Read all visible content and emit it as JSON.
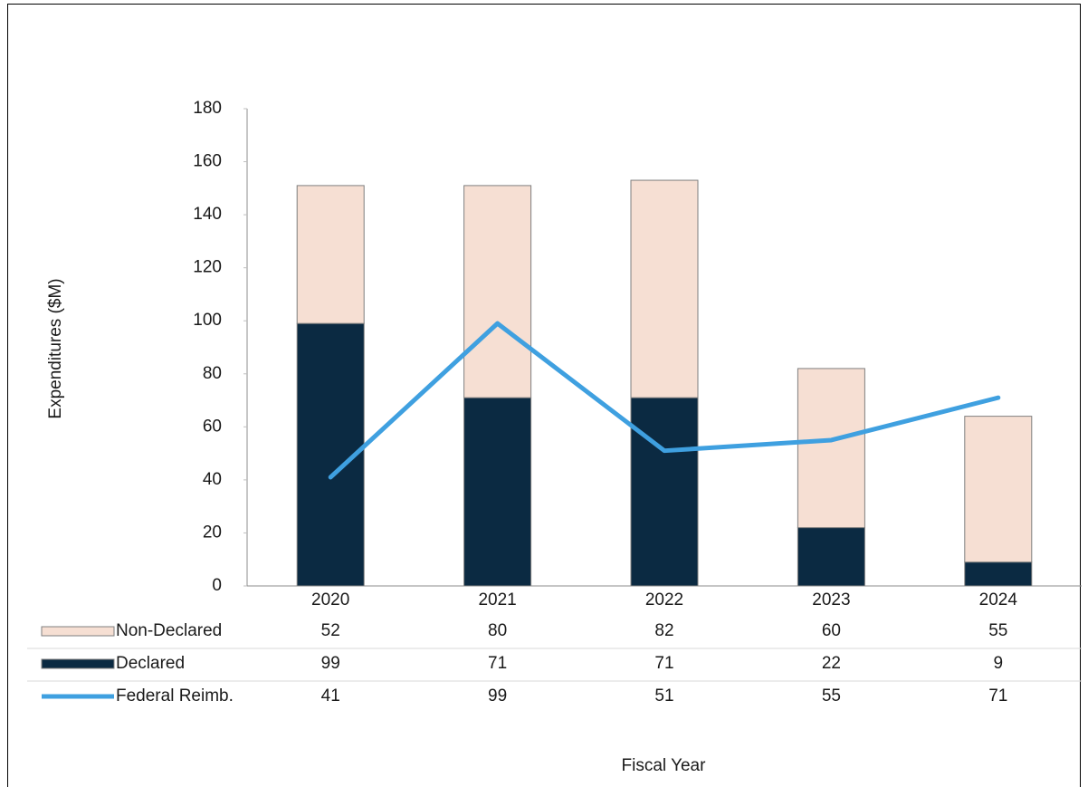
{
  "chart_data": {
    "type": "bar",
    "categories": [
      "2020",
      "2021",
      "2022",
      "2023",
      "2024"
    ],
    "series": [
      {
        "name": "Non-Declared",
        "kind": "bar",
        "color": "#f6dfd3",
        "values": [
          52,
          80,
          82,
          60,
          55
        ]
      },
      {
        "name": "Declared",
        "kind": "bar",
        "color": "#0b2a42",
        "values": [
          99,
          71,
          71,
          22,
          9
        ]
      },
      {
        "name": "Federal Reimb.",
        "kind": "line",
        "color": "#3fa0e0",
        "values": [
          41,
          99,
          51,
          55,
          71
        ]
      }
    ],
    "stacked": true,
    "x_label": "Fiscal Year",
    "y_label": "Expenditures ($M)",
    "ylim": [
      0,
      180
    ],
    "yticks": [
      0,
      20,
      40,
      60,
      80,
      100,
      120,
      140,
      160,
      180
    ],
    "grid": false,
    "data_table": true
  }
}
